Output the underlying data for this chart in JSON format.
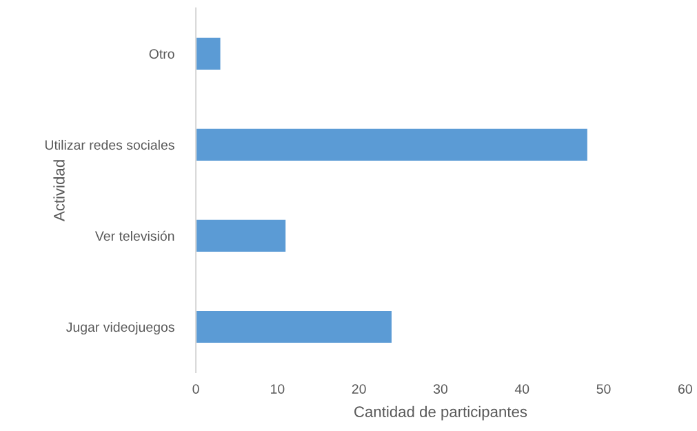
{
  "chart_data": {
    "type": "bar",
    "orientation": "horizontal",
    "xlabel": "Cantidad de participantes",
    "ylabel": "Actividad",
    "categories": [
      "Otro",
      "Utilizar redes sociales",
      "Ver televisión",
      "Jugar videojuegos"
    ],
    "values": [
      3,
      48,
      11,
      24
    ],
    "color": "#5b9bd5",
    "xlim": [
      0,
      60
    ],
    "xticks": [
      0,
      10,
      20,
      30,
      40,
      50,
      60
    ],
    "grid": false,
    "legend": false
  }
}
